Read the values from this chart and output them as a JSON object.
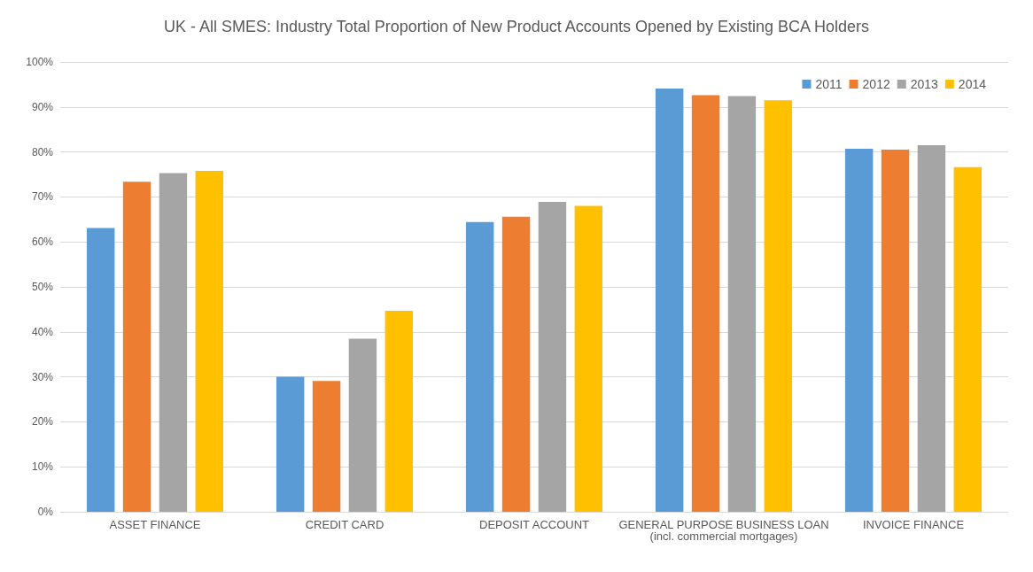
{
  "chart_data": {
    "type": "bar",
    "title": "UK - All SMES: Industry Total Proportion of New Product Accounts Opened by Existing BCA Holders",
    "categories": [
      "ASSET FINANCE",
      "CREDIT CARD",
      "DEPOSIT ACCOUNT",
      "GENERAL PURPOSE BUSINESS LOAN\n(incl. commercial mortgages)",
      "INVOICE FINANCE"
    ],
    "series": [
      {
        "name": "2011",
        "color": "#5b9bd5",
        "values": [
          63.1,
          30.0,
          64.4,
          94.1,
          80.7
        ]
      },
      {
        "name": "2012",
        "color": "#ed7d31",
        "values": [
          73.4,
          29.1,
          65.6,
          92.6,
          80.5
        ]
      },
      {
        "name": "2013",
        "color": "#a5a5a5",
        "values": [
          75.3,
          38.5,
          68.9,
          92.4,
          81.5
        ]
      },
      {
        "name": "2014",
        "color": "#ffc000",
        "values": [
          75.8,
          44.7,
          68.0,
          91.5,
          76.6
        ]
      }
    ],
    "ylim": [
      0,
      100
    ],
    "yticks": [
      {
        "value": 0,
        "label": "0%"
      },
      {
        "value": 10,
        "label": "10%"
      },
      {
        "value": 20,
        "label": "20%"
      },
      {
        "value": 30,
        "label": "30%"
      },
      {
        "value": 40,
        "label": "40%"
      },
      {
        "value": 50,
        "label": "50%"
      },
      {
        "value": 60,
        "label": "60%"
      },
      {
        "value": 70,
        "label": "70%"
      },
      {
        "value": 80,
        "label": "80%"
      },
      {
        "value": 90,
        "label": "90%"
      },
      {
        "value": 100,
        "label": "100%"
      }
    ],
    "grid": "y",
    "legend": "top right"
  }
}
